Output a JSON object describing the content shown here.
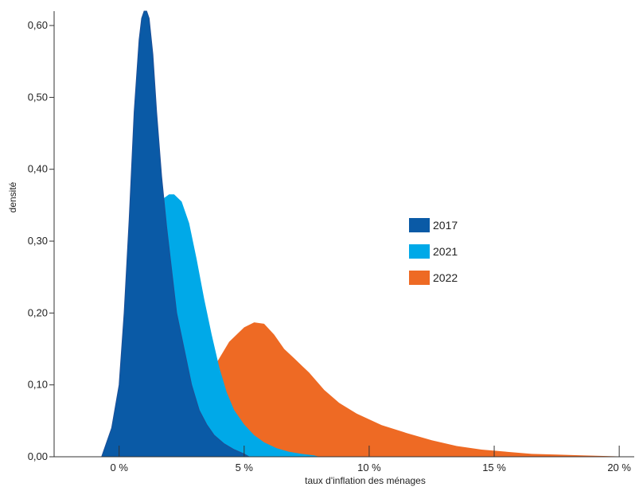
{
  "chart_data": {
    "type": "area",
    "xlabel": "taux d'inflation des ménages",
    "ylabel": "densité",
    "x_ticks": [
      0,
      5,
      10,
      15,
      20
    ],
    "x_tick_labels": [
      "0 %",
      "5 %",
      "10 %",
      "15 %",
      "20 %"
    ],
    "y_ticks": [
      0,
      0.1,
      0.2,
      0.3,
      0.4,
      0.5,
      0.6
    ],
    "y_tick_labels": [
      "0,00",
      "0,10",
      "0,20",
      "0,30",
      "0,40",
      "0,50",
      "0,60"
    ],
    "xlim": [
      -2.6,
      20.6
    ],
    "ylim": [
      0,
      0.62
    ],
    "grid": false,
    "legend_position": "center-right",
    "series": [
      {
        "name": "2022",
        "color": "#ee6a24",
        "x": [
          1.2,
          2,
          2.6,
          3.2,
          3.8,
          4.4,
          5,
          5.4,
          5.8,
          6.2,
          6.6,
          7,
          7.6,
          8.2,
          8.8,
          9.5,
          10.5,
          11.5,
          12.5,
          13.5,
          14.5,
          15.5,
          16.5,
          17.5,
          18.5,
          19.5,
          20.5
        ],
        "values": [
          0,
          0.03,
          0.05,
          0.085,
          0.125,
          0.16,
          0.18,
          0.187,
          0.185,
          0.17,
          0.15,
          0.137,
          0.117,
          0.093,
          0.075,
          0.06,
          0.044,
          0.033,
          0.023,
          0.015,
          0.01,
          0.007,
          0.004,
          0.003,
          0.002,
          0.001,
          0
        ]
      },
      {
        "name": "2021",
        "color": "#00a9e8",
        "x": [
          0.3,
          0.5,
          0.8,
          1.1,
          1.3,
          1.5,
          1.6,
          1.8,
          2.0,
          2.2,
          2.5,
          2.8,
          3.1,
          3.4,
          3.7,
          4.0,
          4.3,
          4.6,
          5.0,
          5.4,
          5.8,
          6.3,
          6.8,
          7.3,
          7.8,
          8.0
        ],
        "values": [
          0,
          0.04,
          0.14,
          0.24,
          0.31,
          0.33,
          0.34,
          0.36,
          0.365,
          0.365,
          0.355,
          0.325,
          0.275,
          0.22,
          0.17,
          0.125,
          0.09,
          0.065,
          0.045,
          0.03,
          0.02,
          0.012,
          0.007,
          0.004,
          0.002,
          0
        ]
      },
      {
        "name": "2017",
        "color": "#0a5aa6",
        "x": [
          -0.7,
          -0.5,
          -0.3,
          0,
          0.2,
          0.4,
          0.6,
          0.8,
          0.9,
          1.0,
          1.1,
          1.2,
          1.35,
          1.5,
          1.7,
          1.9,
          2.1,
          2.3,
          2.6,
          2.9,
          3.2,
          3.5,
          3.8,
          4.2,
          4.6,
          5.0,
          5.2
        ],
        "values": [
          0,
          0.02,
          0.04,
          0.1,
          0.2,
          0.33,
          0.48,
          0.58,
          0.61,
          0.62,
          0.62,
          0.61,
          0.56,
          0.48,
          0.39,
          0.32,
          0.26,
          0.2,
          0.15,
          0.1,
          0.065,
          0.045,
          0.03,
          0.018,
          0.01,
          0.004,
          0
        ]
      }
    ],
    "legend_order": [
      "2017",
      "2021",
      "2022"
    ]
  }
}
